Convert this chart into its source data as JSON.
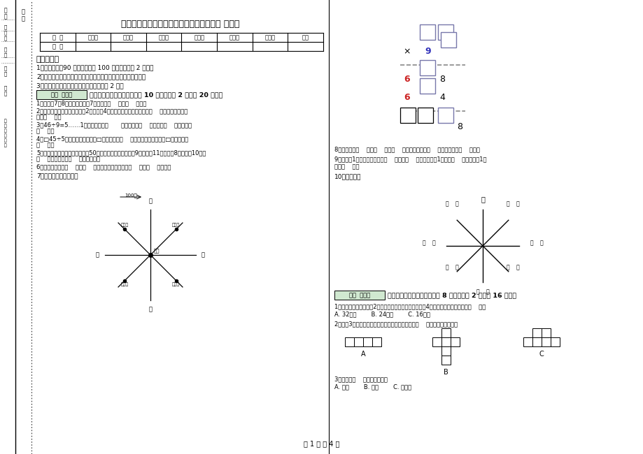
{
  "title": "福州市小学三年级数学下学期期末考试试题 附答案",
  "page_footer": "第 1 页 共 4 页",
  "bg_color": "#ffffff",
  "table_headers": [
    "题  号",
    "填空题",
    "选择题",
    "判断题",
    "计算题",
    "综合题",
    "应用题",
    "总分"
  ],
  "section1_title": "考试须知：",
  "section1_items": [
    "1、考试时间：90 分钟，满分为 100 分（含卷面分 2 分）。",
    "2、请首先按要求在试卷的指定位置域写您的姓名、班级、学号。",
    "3、不要在试卷上乱写乱画，卷面不整洁扣 2 分。"
  ],
  "section2_title": "一、用心思考，正确填空（共 10 小题，每题 2 分，共 20 分）。",
  "section2_items": [
    "1、时针在7和8之间，分针指向7，这时是（    ）时（    ）分。",
    "2、劳动课上做纸花，红红做了2朵纸花，4朵蓝花，红花占纸花总数的（    ），蓝花占纸花总",
    "数的（    ）。",
    "3、46÷9=5……1中，被除数是（       ），除数是（    ），商是（    ），余数是",
    "（    ）。",
    "4、□45÷5，要使商是两位数，□里最大可填（    ）；要使商是三位数，□里最小应填",
    "（    ）。",
    "5、体育老师对第一小组同学进行50米跑测试，成绩如下小红9秒，小丽11秒，小明8秒，小军10秒，",
    "（    ）跑得最快，（    ）跑得最慢。",
    "6、小红家在学校（    ）方（    ）米处；小明家在学校（    ）方（    ）米处。"
  ],
  "q7_text": "7、在里填上适当的数。",
  "q8_text": "8、你出生于（    ）年（    ）月（    ）日，那一年是（    ）年，全年有（    ）天。",
  "q9_text": "9、分针走1小格，秒针正好走（    ），是（    ）秒。分针走1大格是（    ），时针走1大",
  "q9_text2": "格是（    ）。",
  "q10_text": "10、填一填。",
  "section3_title": "二、反复比较，慎重选择（共 8 小题，每题 2 分，共 16 分）。",
  "q_mc1": "1、一个正方形的边长是2厘米，现在将边长扩大到原来的4倍，现在正方形的周长是（    ）。",
  "q_mc1_choices": "A. 32厘米        B. 24厘米        C. 16厘米",
  "q_mc2": "2、下列3个图形中，每个小正方形都一样大，那么（    ）图形的周长最长。",
  "q_mc3": "3、四边形（    ）平行四边形。",
  "q_mc3_choices": "A. 一定        B. 可能        C. 不可能"
}
